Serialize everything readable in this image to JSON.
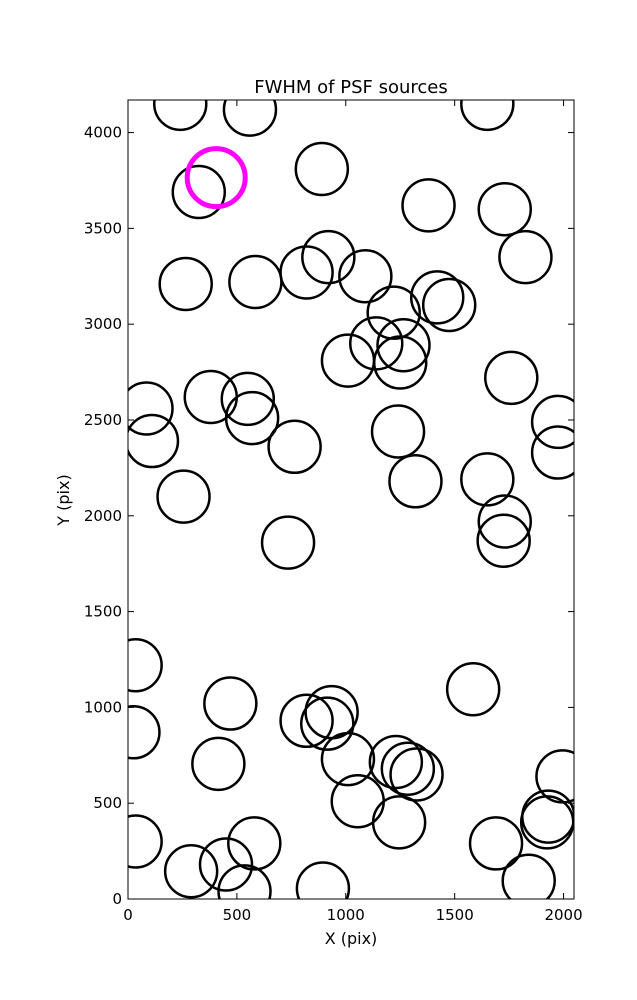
{
  "chart_data": {
    "type": "scatter",
    "title": "FWHM of PSF sources",
    "xlabel": "X (pix)",
    "ylabel": "Y (pix)",
    "xlim": [
      0,
      2048
    ],
    "ylim": [
      0,
      4170
    ],
    "x_ticks": [
      0,
      500,
      1000,
      1500,
      2000
    ],
    "y_ticks": [
      0,
      500,
      1000,
      1500,
      2000,
      2500,
      3000,
      3500,
      4000
    ],
    "grid": false,
    "marker": "open-circle",
    "marker_color": "#000000",
    "highlight_color": "#ff00ff",
    "points": [
      {
        "x": 240,
        "y": 4150
      },
      {
        "x": 560,
        "y": 4120
      },
      {
        "x": 1650,
        "y": 4150
      },
      {
        "x": 325,
        "y": 3690
      },
      {
        "x": 890,
        "y": 3810
      },
      {
        "x": 1380,
        "y": 3620
      },
      {
        "x": 1730,
        "y": 3600
      },
      {
        "x": 1825,
        "y": 3350
      },
      {
        "x": 920,
        "y": 3350
      },
      {
        "x": 265,
        "y": 3210
      },
      {
        "x": 585,
        "y": 3220
      },
      {
        "x": 820,
        "y": 3270
      },
      {
        "x": 1090,
        "y": 3250
      },
      {
        "x": 1420,
        "y": 3140
      },
      {
        "x": 1475,
        "y": 3100
      },
      {
        "x": 1220,
        "y": 3060
      },
      {
        "x": 1140,
        "y": 2900
      },
      {
        "x": 1265,
        "y": 2890
      },
      {
        "x": 1010,
        "y": 2810
      },
      {
        "x": 1250,
        "y": 2800
      },
      {
        "x": 1760,
        "y": 2720
      },
      {
        "x": 380,
        "y": 2620
      },
      {
        "x": 550,
        "y": 2610
      },
      {
        "x": 85,
        "y": 2560
      },
      {
        "x": 570,
        "y": 2510
      },
      {
        "x": 1975,
        "y": 2490
      },
      {
        "x": 1240,
        "y": 2440
      },
      {
        "x": 110,
        "y": 2390
      },
      {
        "x": 765,
        "y": 2360
      },
      {
        "x": 1975,
        "y": 2330
      },
      {
        "x": 1650,
        "y": 2190
      },
      {
        "x": 1320,
        "y": 2180
      },
      {
        "x": 255,
        "y": 2100
      },
      {
        "x": 1730,
        "y": 1970
      },
      {
        "x": 1725,
        "y": 1870
      },
      {
        "x": 735,
        "y": 1860
      },
      {
        "x": 35,
        "y": 1220
      },
      {
        "x": 1585,
        "y": 1095
      },
      {
        "x": 470,
        "y": 1020
      },
      {
        "x": 935,
        "y": 975
      },
      {
        "x": 820,
        "y": 930
      },
      {
        "x": 915,
        "y": 915
      },
      {
        "x": 25,
        "y": 870
      },
      {
        "x": 1010,
        "y": 730
      },
      {
        "x": 415,
        "y": 705
      },
      {
        "x": 1230,
        "y": 715
      },
      {
        "x": 1285,
        "y": 680
      },
      {
        "x": 1325,
        "y": 650
      },
      {
        "x": 1995,
        "y": 640
      },
      {
        "x": 1055,
        "y": 510
      },
      {
        "x": 1930,
        "y": 430
      },
      {
        "x": 1925,
        "y": 400
      },
      {
        "x": 1245,
        "y": 400
      },
      {
        "x": 35,
        "y": 300
      },
      {
        "x": 580,
        "y": 290
      },
      {
        "x": 1690,
        "y": 290
      },
      {
        "x": 450,
        "y": 180
      },
      {
        "x": 290,
        "y": 145
      },
      {
        "x": 1840,
        "y": 95
      },
      {
        "x": 535,
        "y": 40
      },
      {
        "x": 895,
        "y": 55
      }
    ],
    "highlight": [
      {
        "x": 405,
        "y": 3765
      }
    ]
  }
}
